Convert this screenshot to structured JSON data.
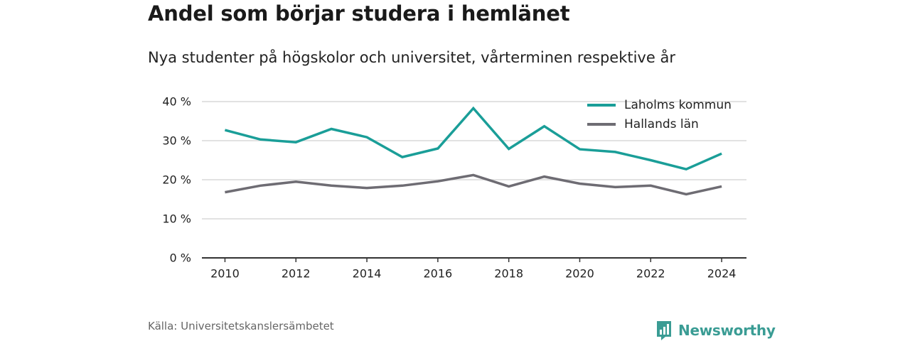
{
  "title": "Andel som börjar studera i hemlänet",
  "subtitle": "Nya studenter på högskolor och universitet, vårterminen respektive år",
  "source": "Källa: Universitetskanslersämbetet",
  "brand": "Newsworthy",
  "colors": {
    "laholm": "#1a9e98",
    "halland": "#6e6c73",
    "grid": "#d9d9d9",
    "axis": "#333333",
    "brand": "#3a9c94"
  },
  "chart_data": {
    "type": "line",
    "x": [
      2010,
      2011,
      2012,
      2013,
      2014,
      2015,
      2016,
      2017,
      2018,
      2019,
      2020,
      2021,
      2022,
      2023,
      2024
    ],
    "x_ticks": [
      "2010",
      "2012",
      "2014",
      "2016",
      "2018",
      "2020",
      "2022",
      "2024"
    ],
    "y_ticks": [
      "0 %",
      "10 %",
      "20 %",
      "30 %",
      "40 %"
    ],
    "ylim": [
      0,
      40
    ],
    "grid": true,
    "legend_position": "top-right",
    "series": [
      {
        "name": "Laholms kommun",
        "color": "#1a9e98",
        "values": [
          32.7,
          30.3,
          29.6,
          33.0,
          30.9,
          25.8,
          28.0,
          38.3,
          27.9,
          33.7,
          27.8,
          27.1,
          25.0,
          22.7,
          26.7
        ]
      },
      {
        "name": "Hallands län",
        "color": "#6e6c73",
        "values": [
          16.8,
          18.5,
          19.5,
          18.5,
          17.9,
          18.5,
          19.6,
          21.2,
          18.3,
          20.8,
          19.0,
          18.1,
          18.5,
          16.3,
          18.3
        ]
      }
    ]
  }
}
